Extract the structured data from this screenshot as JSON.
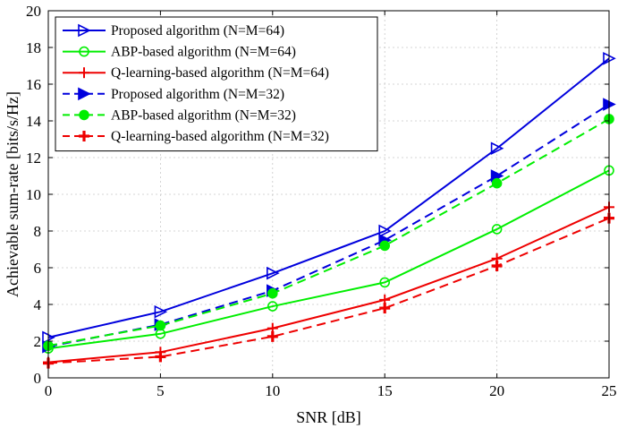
{
  "chart_data": {
    "type": "line",
    "xlabel": "SNR [dB]",
    "ylabel": "Achievable sum-rate [bits/s/Hz]",
    "xlim": [
      0,
      25
    ],
    "ylim": [
      0,
      20
    ],
    "xticks": [
      0,
      5,
      10,
      15,
      20,
      25
    ],
    "yticks": [
      0,
      2,
      4,
      6,
      8,
      10,
      12,
      14,
      16,
      18,
      20
    ],
    "grid": true,
    "legend_position": "top-left",
    "x": [
      0,
      5,
      10,
      15,
      20,
      25
    ],
    "series": [
      {
        "name": "Proposed algorithm (N=M=64)",
        "values": [
          2.2,
          3.6,
          5.7,
          8.0,
          12.5,
          17.4
        ],
        "color": "#0000dd",
        "dash": "solid",
        "marker": "triangle-right-open"
      },
      {
        "name": "ABP-based algorithm (N=M=64)",
        "values": [
          1.6,
          2.4,
          3.9,
          5.2,
          8.1,
          11.3
        ],
        "color": "#00ee00",
        "dash": "solid",
        "marker": "circle-open"
      },
      {
        "name": "Q-learning-based algorithm (N=M=64)",
        "values": [
          0.85,
          1.4,
          2.7,
          4.25,
          6.5,
          9.3
        ],
        "color": "#ee0000",
        "dash": "solid",
        "marker": "plus"
      },
      {
        "name": "Proposed algorithm (N=M=32)",
        "values": [
          1.7,
          2.9,
          4.75,
          7.5,
          11.0,
          14.9
        ],
        "color": "#0000dd",
        "dash": "dashed",
        "marker": "triangle-right-filled"
      },
      {
        "name": "ABP-based algorithm (N=M=32)",
        "values": [
          1.75,
          2.85,
          4.6,
          7.2,
          10.6,
          14.1
        ],
        "color": "#00ee00",
        "dash": "dashed",
        "marker": "circle-filled"
      },
      {
        "name": "Q-learning-based algorithm (N=M=32)",
        "values": [
          0.8,
          1.15,
          2.25,
          3.8,
          6.1,
          8.7
        ],
        "color": "#ee0000",
        "dash": "dashed",
        "marker": "plus-bold"
      }
    ]
  }
}
